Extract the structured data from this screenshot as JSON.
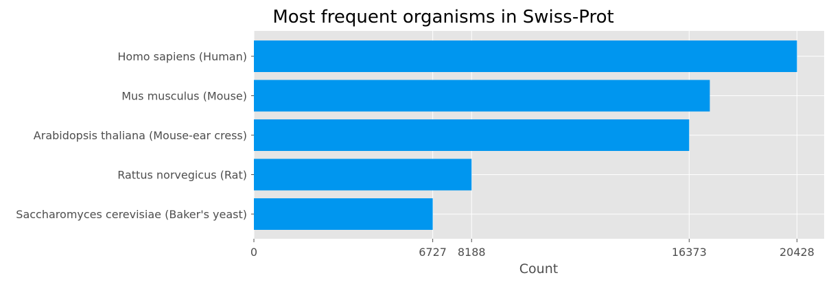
{
  "chart_data": {
    "type": "bar",
    "orientation": "horizontal",
    "title": "Most frequent organisms in Swiss-Prot",
    "xlabel": "Count",
    "ylabel": "",
    "categories": [
      "Homo sapiens (Human)",
      "Mus musculus (Mouse)",
      "Arabidopsis thaliana (Mouse-ear cress)",
      "Rattus norvegicus (Rat)",
      "Saccharomyces cerevisiae (Baker's yeast)"
    ],
    "values": [
      20428,
      17150,
      16373,
      8188,
      6727
    ],
    "xticks": [
      0,
      6727,
      8188,
      16373,
      20428
    ],
    "xlim": [
      0,
      21450
    ],
    "grid": true,
    "bar_color": "#0096ef",
    "plot_background": "#e5e5e5"
  }
}
